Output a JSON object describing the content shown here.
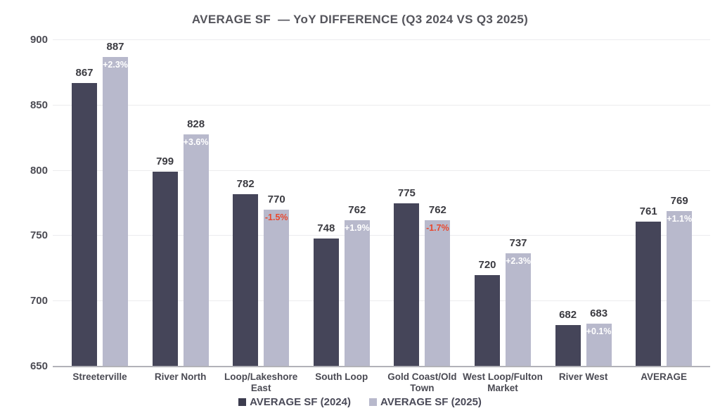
{
  "title": "AVERAGE SF  — YoY DIFFERENCE (Q3 2024 VS Q3 2025)",
  "chart_data": {
    "type": "bar",
    "title": "AVERAGE SF  — YoY DIFFERENCE (Q3 2024 VS Q3 2025)",
    "categories": [
      "Streeterville",
      "River North",
      "Loop/Lakeshore East",
      "South Loop",
      "Gold Coast/Old Town",
      "West Loop/Fulton Market",
      "River West",
      "AVERAGE"
    ],
    "series": [
      {
        "name": "AVERAGE SF (2024)",
        "color": "#454559",
        "values": [
          867,
          799,
          782,
          748,
          775,
          720,
          682,
          761
        ]
      },
      {
        "name": "AVERAGE SF (2025)",
        "color": "#b8b9cc",
        "values": [
          887,
          828,
          770,
          762,
          762,
          737,
          683,
          769
        ]
      }
    ],
    "yoy_pct_labels": [
      "+2.3%",
      "+3.6%",
      "-1.5%",
      "+1.9%",
      "-1.7%",
      "+2.3%",
      "+0.1%",
      "+1.1%"
    ],
    "xlabel": "",
    "ylabel": "",
    "ylim": [
      650,
      900
    ],
    "yticks": [
      650,
      700,
      750,
      800,
      850,
      900
    ],
    "grid": true,
    "legend_position": "bottom",
    "colors": {
      "pct_positive": "#ffffff",
      "pct_negative": "#e8482f",
      "value_label": "#3b3b41",
      "axis_label": "#4b4b53",
      "gridline": "#ececee",
      "baseline": "#b2b2b8",
      "title": "#55555c"
    }
  }
}
